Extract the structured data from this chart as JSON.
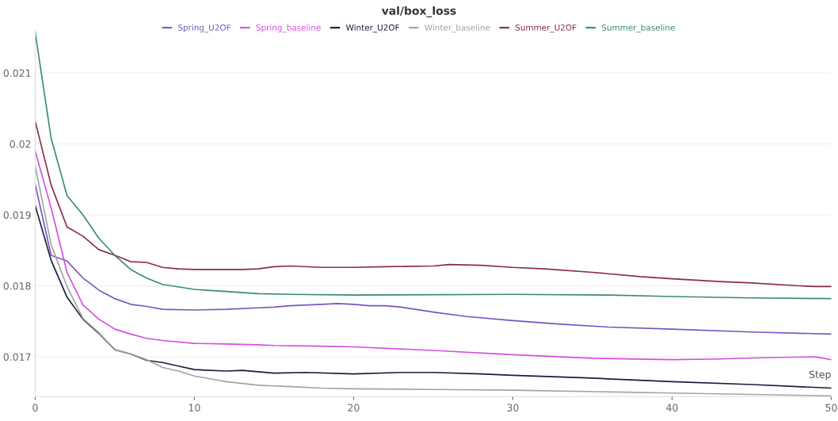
{
  "chart_data": {
    "type": "line",
    "title": "val/box_loss",
    "xlabel": "Step",
    "xlim": [
      0,
      50
    ],
    "xticks": [
      0,
      10,
      20,
      30,
      40,
      50
    ],
    "ylim": [
      0.01644,
      0.0216
    ],
    "yticks": [
      0.017,
      0.018,
      0.019,
      0.02,
      0.021
    ],
    "grid": "y",
    "legend": "top",
    "marker": "none",
    "line_style": "solid",
    "series": [
      {
        "name": "Spring_U2OF",
        "color": "#7b55c0",
        "x": [
          0,
          1,
          2,
          3,
          4,
          5,
          6,
          7,
          8,
          10,
          12,
          14,
          15,
          16,
          18,
          19,
          20,
          21,
          22,
          23,
          25,
          27,
          30,
          33,
          36,
          40,
          45,
          50
        ],
        "values": [
          0.01943,
          0.01843,
          0.01835,
          0.01811,
          0.01794,
          0.01782,
          0.01774,
          0.01771,
          0.01767,
          0.01766,
          0.01767,
          0.01769,
          0.0177,
          0.01772,
          0.01774,
          0.01775,
          0.01774,
          0.01772,
          0.01772,
          0.0177,
          0.01763,
          0.01757,
          0.01751,
          0.01746,
          0.01742,
          0.01739,
          0.01735,
          0.01732
        ]
      },
      {
        "name": "Spring_baseline",
        "color": "#d54ee0",
        "x": [
          0,
          1,
          2,
          3,
          4,
          5,
          6,
          7,
          8,
          10,
          12,
          14,
          15,
          18,
          20,
          25,
          30,
          35,
          40,
          43,
          46,
          49,
          50
        ],
        "values": [
          0.0199,
          0.0191,
          0.01819,
          0.01773,
          0.01753,
          0.01739,
          0.01732,
          0.01726,
          0.01723,
          0.01719,
          0.01718,
          0.01717,
          0.01716,
          0.01715,
          0.01714,
          0.01709,
          0.01703,
          0.01698,
          0.01696,
          0.01697,
          0.01699,
          0.017,
          0.01696
        ]
      },
      {
        "name": "Winter_U2OF",
        "color": "#1c1a40",
        "x": [
          0,
          1,
          2,
          3,
          4,
          5,
          6,
          7,
          8,
          9,
          10,
          12,
          13,
          14,
          15,
          17,
          20,
          23,
          25,
          28,
          30,
          35,
          40,
          45,
          50
        ],
        "values": [
          0.01913,
          0.01836,
          0.01784,
          0.01753,
          0.01733,
          0.0171,
          0.01704,
          0.01695,
          0.01692,
          0.01687,
          0.01682,
          0.0168,
          0.01681,
          0.01679,
          0.01677,
          0.01678,
          0.01676,
          0.01678,
          0.01678,
          0.01676,
          0.01674,
          0.0167,
          0.01665,
          0.01661,
          0.01656
        ]
      },
      {
        "name": "Winter_baseline",
        "color": "#a3a3a3",
        "x": [
          0,
          1,
          2,
          3,
          4,
          5,
          6,
          7,
          8,
          9,
          10,
          12,
          14,
          15,
          16,
          18,
          20,
          25,
          30,
          40,
          45,
          50
        ],
        "values": [
          0.01969,
          0.01858,
          0.01799,
          0.01754,
          0.01734,
          0.0171,
          0.01704,
          0.01696,
          0.01685,
          0.0168,
          0.01673,
          0.01665,
          0.0166,
          0.01659,
          0.01658,
          0.01656,
          0.01655,
          0.01654,
          0.01653,
          0.01649,
          0.01647,
          0.01645
        ]
      },
      {
        "name": "Summer_U2OF",
        "color": "#8a2a50",
        "x": [
          0,
          1,
          2,
          3,
          4,
          5,
          6,
          7,
          8,
          9,
          10,
          12,
          13,
          14,
          15,
          16,
          18,
          20,
          22,
          25,
          26,
          28,
          30,
          32,
          35,
          38,
          40,
          43,
          45,
          48,
          49,
          50
        ],
        "values": [
          0.02032,
          0.01942,
          0.01883,
          0.0187,
          0.01851,
          0.01843,
          0.01834,
          0.01833,
          0.01826,
          0.01824,
          0.01823,
          0.01823,
          0.01823,
          0.01824,
          0.01827,
          0.01828,
          0.01826,
          0.01826,
          0.01827,
          0.01828,
          0.0183,
          0.01829,
          0.01826,
          0.01824,
          0.01819,
          0.01813,
          0.0181,
          0.01806,
          0.01804,
          0.018,
          0.01799,
          0.01799
        ]
      },
      {
        "name": "Summer_baseline",
        "color": "#3a8a78",
        "x": [
          0,
          1,
          2,
          3,
          4,
          5,
          6,
          7,
          8,
          10,
          12,
          14,
          16,
          20,
          30,
          36,
          40,
          45,
          50
        ],
        "values": [
          0.02157,
          0.02008,
          0.01927,
          0.019,
          0.01867,
          0.01843,
          0.01823,
          0.01811,
          0.01802,
          0.01795,
          0.01792,
          0.01789,
          0.01788,
          0.01787,
          0.01788,
          0.01787,
          0.01785,
          0.01783,
          0.01782
        ]
      }
    ]
  }
}
